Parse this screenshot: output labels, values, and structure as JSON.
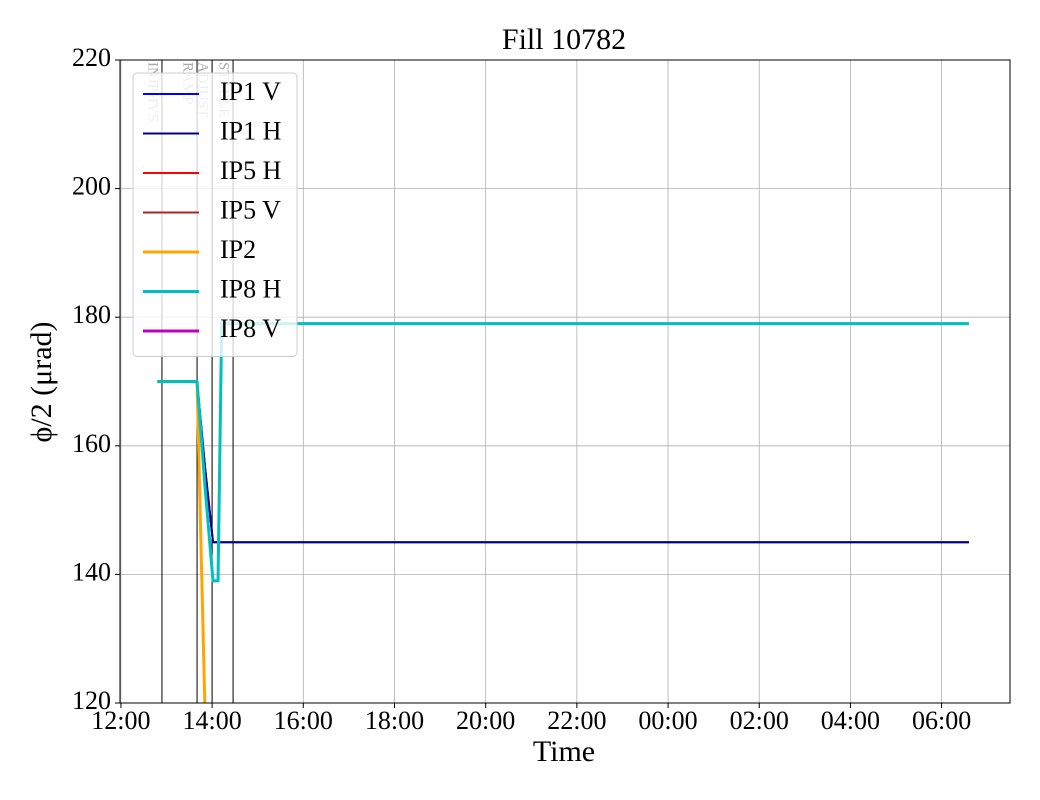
{
  "chart_data": {
    "type": "line",
    "title": "Fill 10782",
    "x_label": "Time",
    "y_label": "ϕ/2 (μrad)",
    "x": [
      0.8,
      1.67,
      1.84,
      2.02,
      2.13,
      2.21,
      18.6
    ],
    "series": [
      {
        "name": "IP1 V",
        "color": "#0000ff",
        "width": 2,
        "values": [
          170,
          170,
          157,
          145,
          145,
          145,
          145
        ]
      },
      {
        "name": "IP1 H",
        "color": "#00008b",
        "width": 2,
        "values": [
          170,
          170,
          157,
          145,
          145,
          145,
          145
        ]
      },
      {
        "name": "IP5 H",
        "color": "#ff0000",
        "width": 2,
        "values": [
          null,
          null,
          null,
          null,
          null,
          null,
          null
        ]
      },
      {
        "name": "IP5 V",
        "color": "#b22222",
        "width": 2,
        "values": [
          null,
          null,
          null,
          null,
          null,
          null,
          null
        ]
      },
      {
        "name": "IP2",
        "color": "#ffa500",
        "width": 3,
        "values": [
          170,
          170,
          120,
          null,
          null,
          null,
          null
        ]
      },
      {
        "name": "IP8 H",
        "color": "#00bfbf",
        "width": 3,
        "values": [
          170,
          170,
          154,
          139,
          139,
          179,
          179
        ]
      },
      {
        "name": "IP8 V",
        "color": "#bf00bf",
        "width": 3,
        "values": [
          null,
          null,
          null,
          null,
          null,
          null,
          null
        ]
      }
    ],
    "modes": [
      {
        "label": "INJPHYS",
        "x": 0.9
      },
      {
        "label": "RAMP",
        "x": 1.67
      },
      {
        "label": "ADJUST",
        "x": 2.0
      },
      {
        "label": "STABLE",
        "x": 2.46
      }
    ],
    "xlim": [
      -0.02,
      19.5
    ],
    "ylim": [
      120,
      220
    ],
    "xticks": [
      {
        "value": 0,
        "label": "12:00"
      },
      {
        "value": 2,
        "label": "14:00"
      },
      {
        "value": 4,
        "label": "16:00"
      },
      {
        "value": 6,
        "label": "18:00"
      },
      {
        "value": 8,
        "label": "20:00"
      },
      {
        "value": 10,
        "label": "22:00"
      },
      {
        "value": 12,
        "label": "00:00"
      },
      {
        "value": 14,
        "label": "02:00"
      },
      {
        "value": 16,
        "label": "04:00"
      },
      {
        "value": 18,
        "label": "06:00"
      }
    ],
    "yticks": [
      120,
      140,
      160,
      180,
      200,
      220
    ],
    "grid": true,
    "legend": "upper left"
  }
}
